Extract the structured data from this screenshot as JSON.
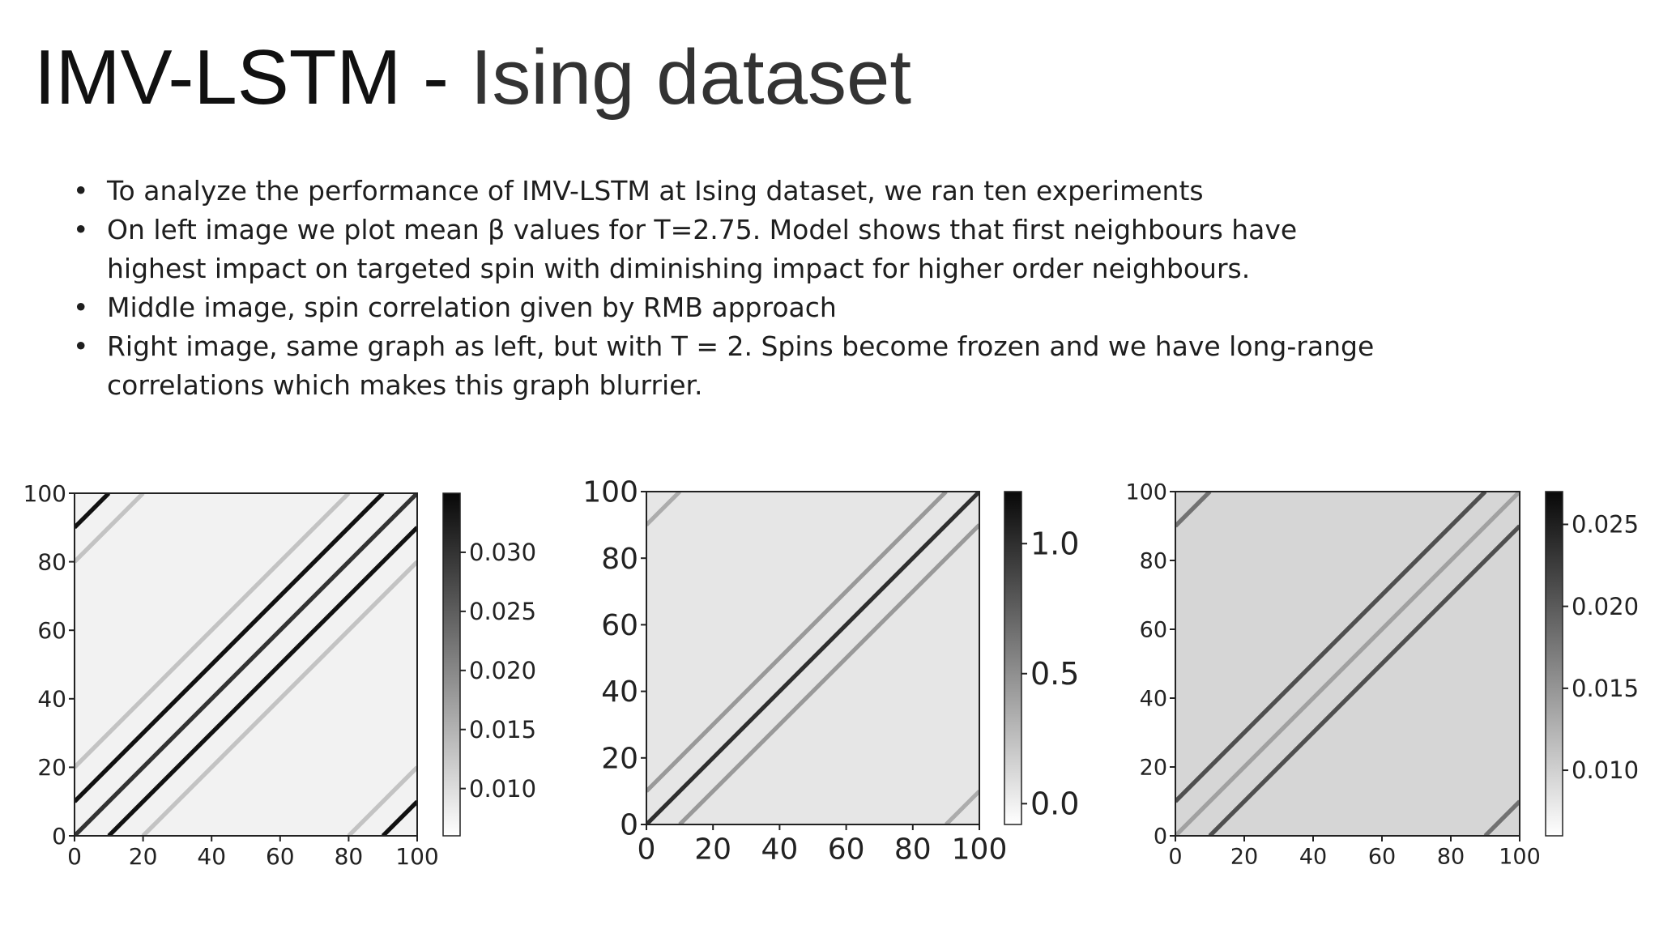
{
  "title": {
    "part1": "IMV-LSTM - ",
    "part2": "Ising dataset"
  },
  "bullets": [
    "To analyze the performance of IMV-LSTM at Ising dataset, we ran ten experiments",
    "On left image we plot mean β values for T=2.75. Model shows that first neighbours have highest impact on targeted spin with diminishing impact for higher order neighbours.",
    "Middle image, spin correlation given by RMB approach",
    "Right image, same graph as left, but with T = 2. Spins become frozen and we have long-range correlations which makes this graph blurrier."
  ],
  "chart_data": [
    {
      "type": "heatmap",
      "colormap": "Greys",
      "xlim": [
        0,
        100
      ],
      "ylim": [
        0,
        100
      ],
      "xticks": [
        "0",
        "20",
        "40",
        "60",
        "80",
        "100"
      ],
      "yticks": [
        "0",
        "20",
        "40",
        "60",
        "80",
        "100"
      ],
      "colorbar_range": [
        0.006,
        0.035
      ],
      "colorbar_ticks": [
        "0.010",
        "0.015",
        "0.020",
        "0.025",
        "0.030"
      ],
      "colorbar_tick_values": [
        0.01,
        0.015,
        0.02,
        0.025,
        0.03
      ],
      "background_value": 0.0075,
      "bands": [
        {
          "offset": 0,
          "value": 0.03
        },
        {
          "offset": 10,
          "value": 0.034
        },
        {
          "offset": -10,
          "value": 0.034
        },
        {
          "offset": 20,
          "value": 0.013
        },
        {
          "offset": -20,
          "value": 0.013
        },
        {
          "offset": 90,
          "value": 0.034
        },
        {
          "offset": -90,
          "value": 0.034
        },
        {
          "offset": 80,
          "value": 0.013
        },
        {
          "offset": -80,
          "value": 0.013
        }
      ]
    },
    {
      "type": "heatmap",
      "colormap": "Greys",
      "xlim": [
        0,
        100
      ],
      "ylim": [
        0,
        100
      ],
      "xticks": [
        "0",
        "20",
        "40",
        "60",
        "80",
        "100"
      ],
      "yticks": [
        "0",
        "20",
        "40",
        "60",
        "80",
        "100"
      ],
      "colorbar_range": [
        -0.08,
        1.2
      ],
      "colorbar_ticks": [
        "0.0",
        "0.5",
        "1.0"
      ],
      "colorbar_tick_values": [
        0.0,
        0.5,
        1.0
      ],
      "background_value": 0.05,
      "bands": [
        {
          "offset": 0,
          "value": 1.0
        },
        {
          "offset": 10,
          "value": 0.45
        },
        {
          "offset": -10,
          "value": 0.45
        },
        {
          "offset": 90,
          "value": 0.35
        },
        {
          "offset": -90,
          "value": 0.35
        }
      ]
    },
    {
      "type": "heatmap",
      "colormap": "Greys",
      "xlim": [
        0,
        100
      ],
      "ylim": [
        0,
        100
      ],
      "xticks": [
        "0",
        "20",
        "40",
        "60",
        "80",
        "100"
      ],
      "yticks": [
        "0",
        "20",
        "40",
        "60",
        "80",
        "100"
      ],
      "colorbar_range": [
        0.006,
        0.027
      ],
      "colorbar_ticks": [
        "0.010",
        "0.015",
        "0.020",
        "0.025"
      ],
      "colorbar_tick_values": [
        0.01,
        0.015,
        0.02,
        0.025
      ],
      "background_value": 0.0095,
      "bands": [
        {
          "offset": 0,
          "value": 0.014
        },
        {
          "offset": 10,
          "value": 0.021
        },
        {
          "offset": -10,
          "value": 0.021
        },
        {
          "offset": 90,
          "value": 0.018
        },
        {
          "offset": -90,
          "value": 0.018
        }
      ]
    }
  ]
}
